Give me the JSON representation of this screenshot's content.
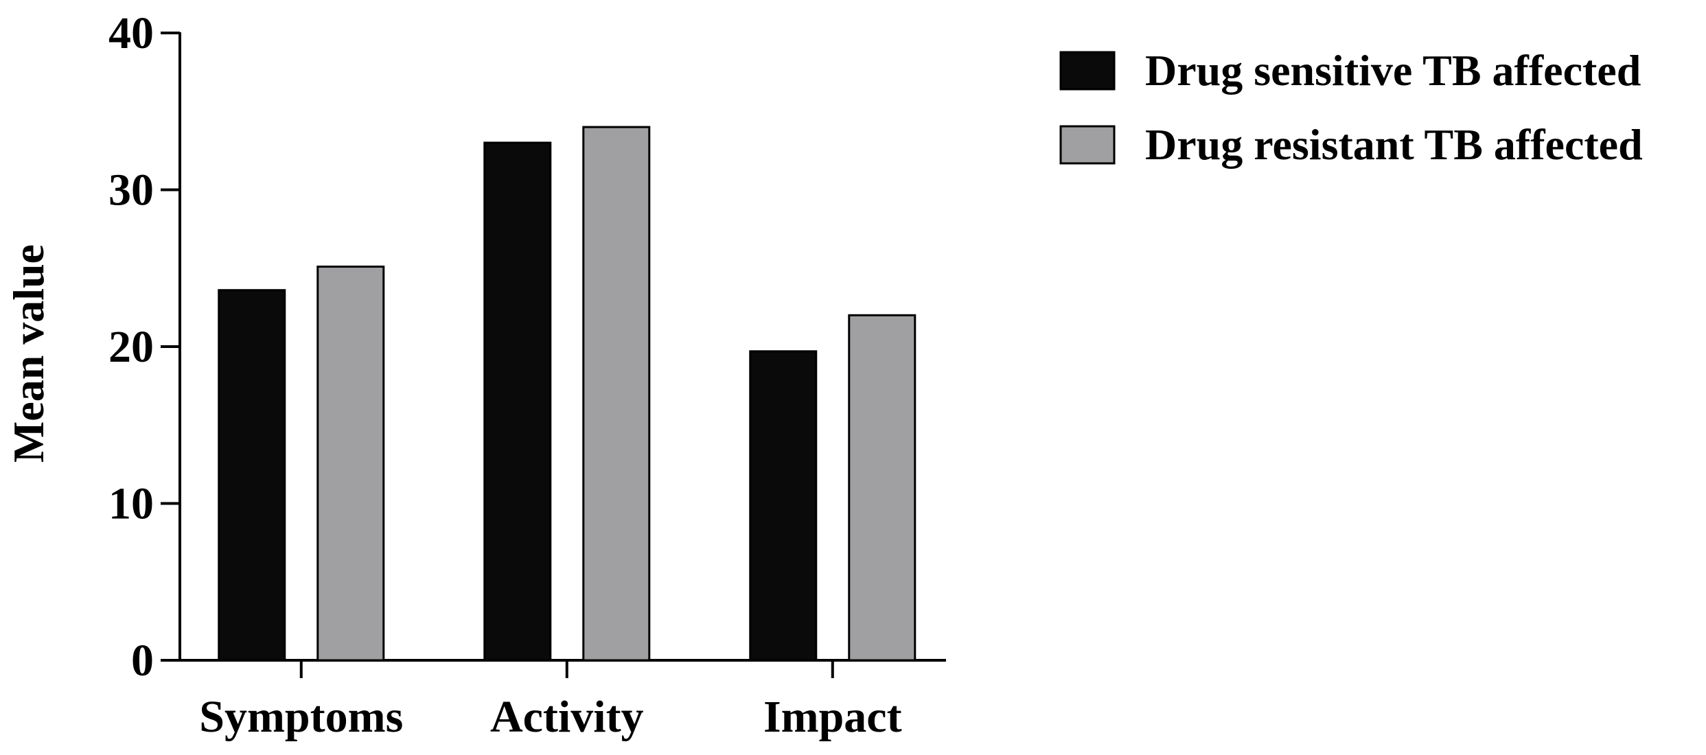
{
  "chart_data": {
    "type": "bar",
    "title": "",
    "xlabel": "",
    "ylabel": "Mean value",
    "ylim": [
      0,
      40
    ],
    "yticks": [
      0,
      10,
      20,
      30,
      40
    ],
    "categories": [
      "Symptoms",
      "Activity",
      "Impact"
    ],
    "series": [
      {
        "name": "Drug sensitive TB affected",
        "color": "#0a0a0a",
        "values": [
          23.6,
          33.0,
          19.7
        ]
      },
      {
        "name": "Drug resistant TB affected",
        "color": "#a0a0a3",
        "values": [
          25.1,
          34.0,
          22.0
        ]
      }
    ],
    "grid": false,
    "legend_position": "top-right"
  }
}
